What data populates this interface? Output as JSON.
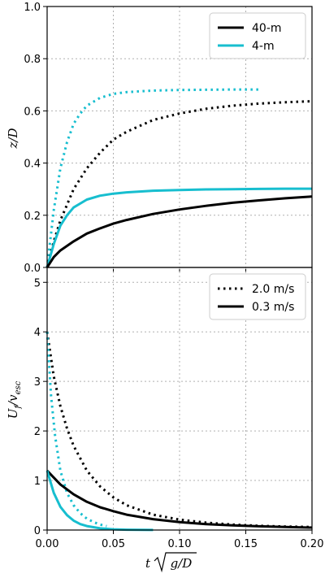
{
  "colors": {
    "black": "#000000",
    "cyan": "#17becf"
  },
  "chart_data": [
    {
      "type": "line",
      "title": "",
      "xlabel": "",
      "ylabel": "z/D",
      "xlim": [
        0,
        0.2
      ],
      "ylim": [
        0,
        1.0
      ],
      "xticks": [
        0.0,
        0.05,
        0.1,
        0.15,
        0.2
      ],
      "yticks": [
        0.0,
        0.2,
        0.4,
        0.6,
        0.8,
        1.0
      ],
      "ytick_labels": [
        "0.0",
        "0.2",
        "0.4",
        "0.6",
        "0.8",
        "1.0"
      ],
      "grid": true,
      "legend_position": "top-right",
      "legend": [
        {
          "label": "40-m",
          "color": "#000000",
          "style": "solid"
        },
        {
          "label": "4-m",
          "color": "#17becf",
          "style": "solid"
        }
      ],
      "series": [
        {
          "color": "#17becf",
          "style": "dotted",
          "x": [
            0,
            0.005,
            0.01,
            0.015,
            0.02,
            0.025,
            0.03,
            0.04,
            0.05,
            0.06,
            0.08,
            0.1,
            0.12,
            0.14,
            0.16
          ],
          "y": [
            0,
            0.22,
            0.38,
            0.48,
            0.55,
            0.59,
            0.62,
            0.65,
            0.665,
            0.672,
            0.678,
            0.68,
            0.681,
            0.682,
            0.682
          ]
        },
        {
          "color": "#000000",
          "style": "dotted",
          "x": [
            0,
            0.005,
            0.01,
            0.02,
            0.03,
            0.04,
            0.05,
            0.06,
            0.08,
            0.1,
            0.12,
            0.14,
            0.16,
            0.18,
            0.2
          ],
          "y": [
            0,
            0.1,
            0.18,
            0.3,
            0.38,
            0.44,
            0.49,
            0.52,
            0.565,
            0.59,
            0.608,
            0.62,
            0.628,
            0.633,
            0.637
          ]
        },
        {
          "color": "#17becf",
          "style": "solid",
          "x": [
            0,
            0.005,
            0.01,
            0.015,
            0.02,
            0.03,
            0.04,
            0.05,
            0.06,
            0.08,
            0.1,
            0.12,
            0.14,
            0.16,
            0.18,
            0.2
          ],
          "y": [
            0,
            0.09,
            0.16,
            0.2,
            0.23,
            0.26,
            0.275,
            0.283,
            0.288,
            0.294,
            0.297,
            0.299,
            0.3,
            0.301,
            0.302,
            0.302
          ]
        },
        {
          "color": "#000000",
          "style": "solid",
          "x": [
            0,
            0.005,
            0.01,
            0.02,
            0.03,
            0.04,
            0.05,
            0.06,
            0.08,
            0.1,
            0.12,
            0.14,
            0.16,
            0.18,
            0.2
          ],
          "y": [
            0,
            0.04,
            0.065,
            0.1,
            0.13,
            0.15,
            0.168,
            0.182,
            0.205,
            0.222,
            0.236,
            0.248,
            0.257,
            0.265,
            0.272
          ]
        }
      ]
    },
    {
      "type": "line",
      "title": "",
      "xlabel": "t√(g/D)",
      "ylabel": "U_f/v_esc",
      "xlim": [
        0,
        0.2
      ],
      "ylim": [
        0,
        5.3
      ],
      "xticks": [
        0.0,
        0.05,
        0.1,
        0.15,
        0.2
      ],
      "xtick_labels": [
        "0.00",
        "0.05",
        "0.10",
        "0.15",
        "0.20"
      ],
      "yticks": [
        0,
        1,
        2,
        3,
        4,
        5
      ],
      "ytick_labels": [
        "0",
        "1",
        "2",
        "3",
        "4",
        "5"
      ],
      "grid": true,
      "legend_position": "top-right",
      "legend": [
        {
          "label": "2.0 m/s",
          "color": "#000000",
          "style": "dotted"
        },
        {
          "label": "0.3 m/s",
          "color": "#000000",
          "style": "solid"
        }
      ],
      "series": [
        {
          "color": "#000000",
          "style": "dotted",
          "x": [
            0,
            0.005,
            0.01,
            0.015,
            0.02,
            0.03,
            0.04,
            0.05,
            0.06,
            0.08,
            0.1,
            0.12,
            0.14,
            0.16,
            0.18,
            0.2
          ],
          "y": [
            4.0,
            3.1,
            2.5,
            2.05,
            1.7,
            1.2,
            0.88,
            0.66,
            0.5,
            0.31,
            0.21,
            0.15,
            0.11,
            0.085,
            0.07,
            0.06
          ]
        },
        {
          "color": "#17becf",
          "style": "dotted",
          "x": [
            0,
            0.003,
            0.006,
            0.01,
            0.015,
            0.02,
            0.025,
            0.03,
            0.035,
            0.04,
            0.045
          ],
          "y": [
            4.0,
            2.7,
            1.9,
            1.2,
            0.75,
            0.5,
            0.34,
            0.23,
            0.16,
            0.11,
            0.08
          ]
        },
        {
          "color": "#000000",
          "style": "solid",
          "x": [
            0,
            0.01,
            0.02,
            0.03,
            0.04,
            0.05,
            0.06,
            0.08,
            0.1,
            0.12,
            0.14,
            0.16,
            0.18,
            0.2
          ],
          "y": [
            1.2,
            0.92,
            0.72,
            0.57,
            0.46,
            0.38,
            0.31,
            0.22,
            0.16,
            0.12,
            0.095,
            0.075,
            0.06,
            0.05
          ]
        },
        {
          "color": "#17becf",
          "style": "solid",
          "x": [
            0,
            0.005,
            0.01,
            0.015,
            0.02,
            0.025,
            0.03,
            0.04,
            0.05,
            0.06,
            0.08
          ],
          "y": [
            1.2,
            0.75,
            0.47,
            0.3,
            0.19,
            0.12,
            0.08,
            0.035,
            0.015,
            0.007,
            0.002
          ]
        }
      ]
    }
  ]
}
